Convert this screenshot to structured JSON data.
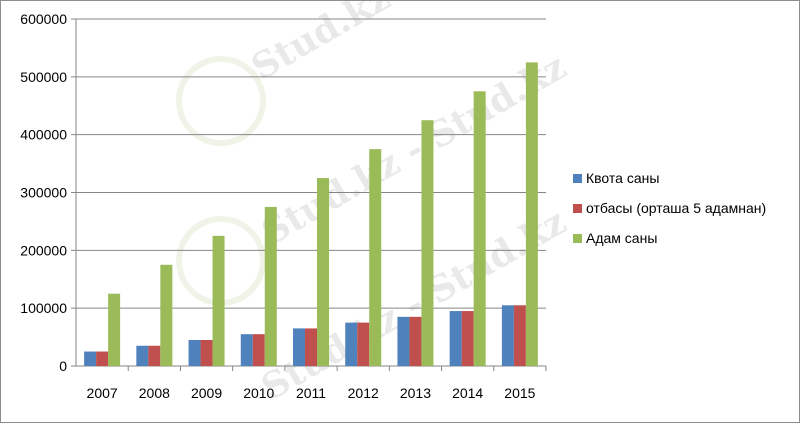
{
  "watermark": {
    "text": "Stud.kz - Stud.kz"
  },
  "chart_data": {
    "type": "bar",
    "title": "",
    "xlabel": "",
    "ylabel": "",
    "categories": [
      "2007",
      "2008",
      "2009",
      "2010",
      "2011",
      "2012",
      "2013",
      "2014",
      "2015"
    ],
    "series": [
      {
        "name": "Квота саны",
        "color": "#4f81bd",
        "values": [
          25000,
          35000,
          45000,
          55000,
          65000,
          75000,
          85000,
          95000,
          105000
        ]
      },
      {
        "name": "отбасы (орташа 5 адамнан)",
        "color": "#c0504d",
        "values": [
          25000,
          35000,
          45000,
          55000,
          65000,
          75000,
          85000,
          95000,
          105000
        ]
      },
      {
        "name": "Адам саны",
        "color": "#9bbb59",
        "values": [
          125000,
          175000,
          225000,
          275000,
          325000,
          375000,
          425000,
          475000,
          525000
        ]
      }
    ],
    "ylim": [
      0,
      600000
    ],
    "yticks": [
      "0",
      "100000",
      "200000",
      "300000",
      "400000",
      "500000",
      "600000"
    ],
    "grid": true,
    "legend": "right"
  }
}
